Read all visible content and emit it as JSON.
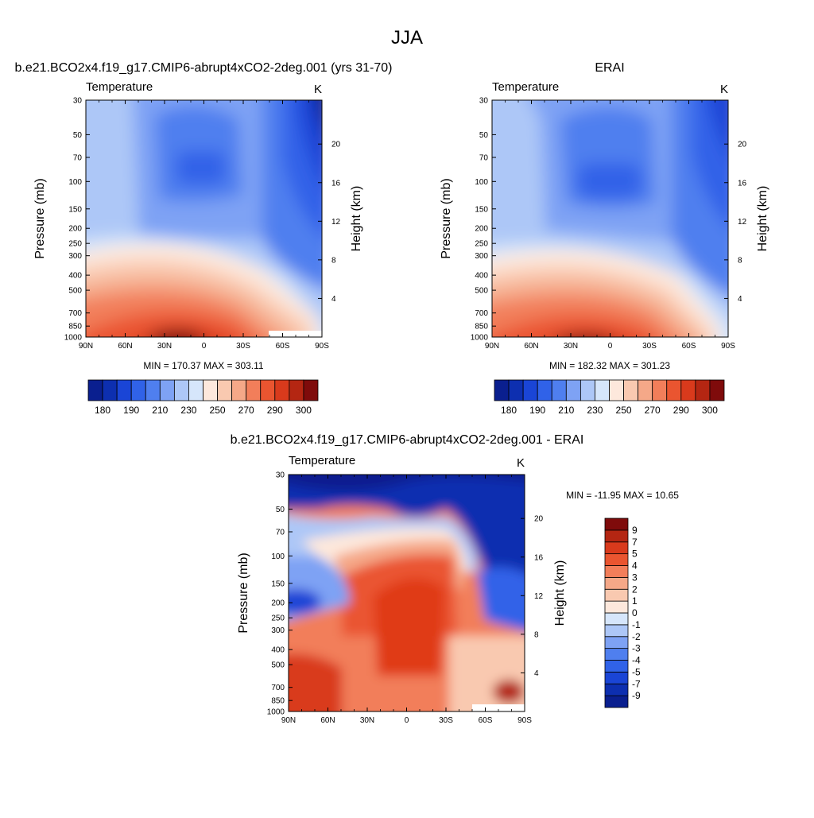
{
  "figure": {
    "title": "JJA"
  },
  "colors": {
    "abs_levels": [
      "#0a1f8f",
      "#0d2fb0",
      "#1a45d6",
      "#3062e8",
      "#4f7fef",
      "#7ea2f4",
      "#adc7f7",
      "#d6e6fb",
      "#fde8dc",
      "#f9c9b0",
      "#f5a888",
      "#f27e5a",
      "#ea5530",
      "#d93a1c",
      "#b42612",
      "#7f0b0b"
    ],
    "diff_levels": [
      "#0a1f8f",
      "#0d2fb0",
      "#1a45d6",
      "#3062e8",
      "#4f7fef",
      "#7ea2f4",
      "#adc7f7",
      "#d6e6fb",
      "#fde8dc",
      "#f9c9b0",
      "#f5a888",
      "#f27e5a",
      "#ea5530",
      "#d93a1c",
      "#b42612",
      "#7f0b0b"
    ]
  },
  "chart_data": [
    {
      "type": "contour",
      "id": "model",
      "title": "b.e21.BCO2x4.f19_g17.CMIP6-abrupt4xCO2-2deg.001 (yrs 31-70)",
      "left_label": "Temperature",
      "right_label": "K",
      "ylabel": "Pressure (mb)",
      "ylabel_right": "Height (km)",
      "x_ticks": [
        "90N",
        "60N",
        "30N",
        "0",
        "30S",
        "60S",
        "90S"
      ],
      "x_values": [
        90,
        60,
        30,
        0,
        -30,
        -60,
        -90
      ],
      "p_ticks": [
        30,
        50,
        70,
        100,
        150,
        200,
        250,
        300,
        400,
        500,
        700,
        850,
        1000
      ],
      "height_ticks": [
        4,
        8,
        12,
        16,
        20
      ],
      "stats": "MIN = 170.37  MAX = 303.11",
      "colorbar": {
        "orientation": "horizontal",
        "levels": [
          175,
          180,
          185,
          190,
          200,
          210,
          220,
          230,
          240,
          250,
          260,
          270,
          280,
          290,
          295,
          300
        ],
        "labels": [
          "180",
          "190",
          "210",
          "230",
          "250",
          "270",
          "290",
          "300"
        ]
      }
    },
    {
      "type": "contour",
      "id": "obs",
      "title": "ERAI",
      "left_label": "Temperature",
      "right_label": "K",
      "ylabel": "Pressure (mb)",
      "ylabel_right": "Height (km)",
      "x_ticks": [
        "90N",
        "60N",
        "30N",
        "0",
        "30S",
        "60S",
        "90S"
      ],
      "x_values": [
        90,
        60,
        30,
        0,
        -30,
        -60,
        -90
      ],
      "p_ticks": [
        30,
        50,
        70,
        100,
        150,
        200,
        250,
        300,
        400,
        500,
        700,
        850,
        1000
      ],
      "height_ticks": [
        4,
        8,
        12,
        16,
        20
      ],
      "stats": "MIN = 182.32  MAX = 301.23",
      "colorbar": {
        "orientation": "horizontal",
        "levels": [
          175,
          180,
          185,
          190,
          200,
          210,
          220,
          230,
          240,
          250,
          260,
          270,
          280,
          290,
          295,
          300
        ],
        "labels": [
          "180",
          "190",
          "210",
          "230",
          "250",
          "270",
          "290",
          "300"
        ]
      }
    },
    {
      "type": "contour",
      "id": "diff",
      "title": "b.e21.BCO2x4.f19_g17.CMIP6-abrupt4xCO2-2deg.001 - ERAI",
      "left_label": "Temperature",
      "right_label": "K",
      "ylabel": "Pressure (mb)",
      "ylabel_right": "Height (km)",
      "x_ticks": [
        "90N",
        "60N",
        "30N",
        "0",
        "30S",
        "60S",
        "90S"
      ],
      "x_values": [
        90,
        60,
        30,
        0,
        -30,
        -60,
        -90
      ],
      "p_ticks": [
        30,
        50,
        70,
        100,
        150,
        200,
        250,
        300,
        400,
        500,
        700,
        850,
        1000
      ],
      "height_ticks": [
        4,
        8,
        12,
        16,
        20
      ],
      "stats": "MIN = -11.95  MAX =  10.65",
      "colorbar": {
        "orientation": "vertical",
        "levels": [
          -9,
          -7,
          -5,
          -4,
          -3,
          -2,
          -1,
          0,
          1,
          2,
          3,
          4,
          5,
          7,
          9
        ],
        "labels": [
          "-9",
          "-7",
          "-5",
          "-4",
          "-3",
          "-2",
          "-1",
          "0",
          "1",
          "2",
          "3",
          "4",
          "5",
          "7",
          "9"
        ]
      }
    }
  ]
}
